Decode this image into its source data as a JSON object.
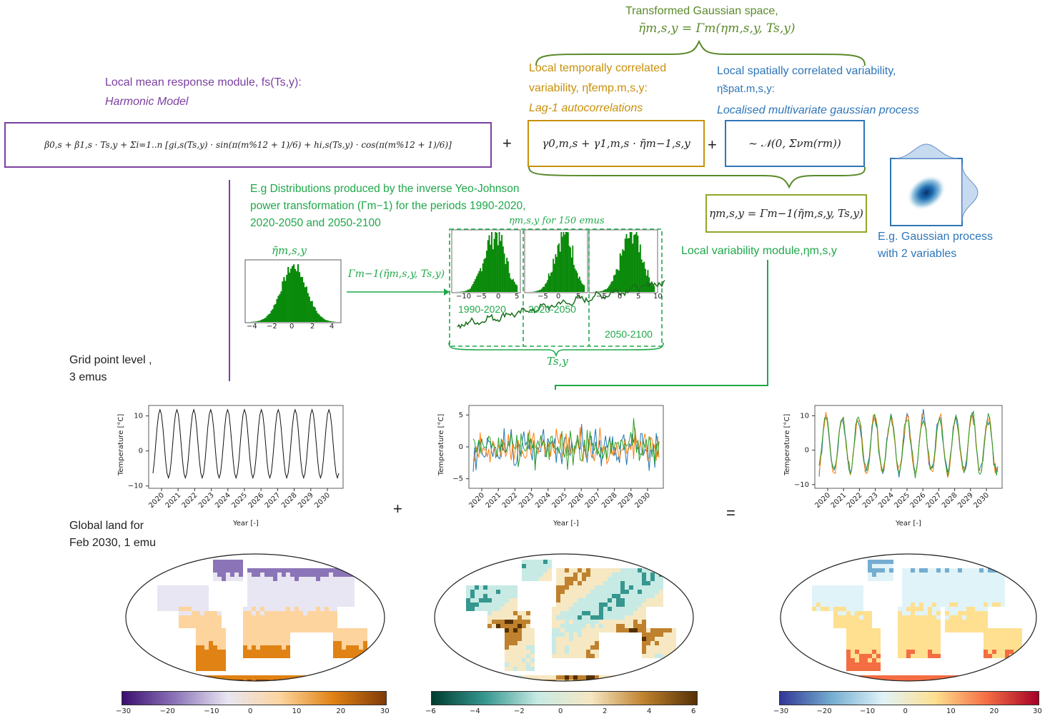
{
  "top_brace": {
    "title": "Transformed Gaussian space,",
    "formula": "η̃m,s,y = Γm(ηm,s,y, Ts,y)"
  },
  "mean_module": {
    "title": "Local mean response module, fs(Ts,y):",
    "subtitle": "Harmonic Model",
    "formula": "β0,s + β1,s · Ts,y + Σi=1..n [gi,s(Ts,y) · sin(π(m%12 + 1)/6) + hi,s(Ts,y) · cos(π(m%12 + 1)/6)]"
  },
  "temporal": {
    "title_line1": "Local temporally correlated",
    "title_line2": "variability, η̃temp.m,s,y:",
    "subtitle": "Lag-1 autocorrelations",
    "formula": "γ0,m,s + γ1,m,s · η̃m−1,s,y"
  },
  "spatial": {
    "title_line1": "Local spatially correlated variability,",
    "title_line2": "η̃spat.m,s,y:",
    "subtitle": "Localised multivariate gaussian process",
    "formula": "~ 𝒩(0, Σνm(rm))"
  },
  "operators": {
    "plus": "+",
    "equals": "="
  },
  "inverse": {
    "formula": "ηm,s,y = Γm−1(η̃m,s,y, Ts,y)",
    "label": "Local variability module,ηm,s,y"
  },
  "gauss_example": {
    "line1": "E.g. Gaussian process",
    "line2": "with 2 variables"
  },
  "yeo": {
    "line1": "E.g Distributions produced by the inverse Yeo-Johnson",
    "line2": "power transformation (Γm−1) for the periods 1990-2020,",
    "line3": "2020-2050 and 2050-2100",
    "input_label": "η̃m,s,y",
    "arrow_label": "Γm−1(η̃m,s,y, Ts,y)",
    "hist_title": "ηm,s,y for 150 emus",
    "periods": [
      "1990-2020",
      "2020-2050",
      "2050-2100"
    ],
    "brace_label": "Ts,y",
    "input_ticks": [
      "−4",
      "−2",
      "0",
      "2",
      "4"
    ],
    "hist1_ticks": [
      "−10",
      "−5",
      "0",
      "5"
    ],
    "hist2_ticks": [
      "−5",
      "0",
      "5"
    ],
    "hist3_ticks": [
      "−5",
      "0",
      "5",
      "10"
    ]
  },
  "grid_label": {
    "line1": "Grid point level ,",
    "line2": "3 emus"
  },
  "global_label": {
    "line1": "Global land for",
    "line2": "Feb 2030, 1 emu"
  },
  "ts_charts": {
    "ylabel": "Temperature [°C]",
    "xlabel": "Year [-]",
    "years": [
      "2020",
      "2021",
      "2022",
      "2023",
      "2024",
      "2025",
      "2026",
      "2027",
      "2028",
      "2029",
      "2030"
    ],
    "left_yticks": [
      "10",
      "0",
      "−10"
    ],
    "mid_yticks": [
      "5",
      "0",
      "−5"
    ],
    "right_yticks": [
      "10",
      "0",
      "−10"
    ]
  },
  "colorbars": {
    "left": {
      "ticks": [
        "−30",
        "−20",
        "−10",
        "0",
        "10",
        "20",
        "30"
      ],
      "colors": [
        "#3b0f70",
        "#8c74b8",
        "#e8e6f2",
        "#fdd49e",
        "#e08214",
        "#7f3b08"
      ]
    },
    "mid": {
      "ticks": [
        "−6",
        "−4",
        "−2",
        "0",
        "2",
        "4",
        "6"
      ],
      "colors": [
        "#003c30",
        "#35978f",
        "#c7eae5",
        "#f6e8c3",
        "#bf812d",
        "#543005"
      ]
    },
    "right": {
      "ticks": [
        "−30",
        "−20",
        "−10",
        "0",
        "10",
        "20",
        "30"
      ],
      "colors": [
        "#313695",
        "#74add1",
        "#e0f3f8",
        "#fee090",
        "#f46d43",
        "#a50026"
      ]
    }
  },
  "colors": {
    "purple": "#7b3fa0",
    "gold": "#c8900a",
    "blue": "#2e76b8",
    "olive": "#5a8a2a",
    "green": "#1fa84a"
  }
}
